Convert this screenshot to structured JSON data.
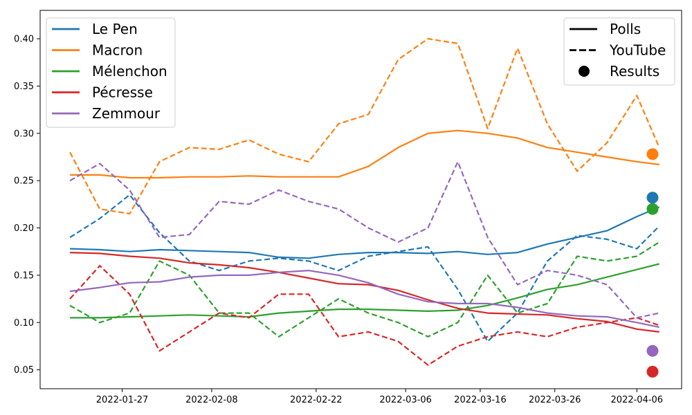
{
  "chart_data": {
    "type": "line",
    "title": "",
    "xlabel": "",
    "ylabel": "",
    "xlim": [
      "2022-01-16",
      "2022-04-12"
    ],
    "ylim": [
      0.03,
      0.43
    ],
    "x_ticks": [
      "2022-01-27",
      "2022-02-08",
      "2022-02-22",
      "2022-03-06",
      "2022-03-16",
      "2022-03-26",
      "2022-04-06"
    ],
    "y_ticks": [
      0.05,
      0.1,
      0.15,
      0.2,
      0.25,
      0.3,
      0.35,
      0.4
    ],
    "grid": false,
    "legend_candidates_position": "top-left",
    "legend_style_position": "top-right",
    "style_legend": [
      {
        "label": "Polls",
        "style": "solid-line"
      },
      {
        "label": "YouTube",
        "style": "dashed-line"
      },
      {
        "label": "Results",
        "style": "dot"
      }
    ],
    "x": [
      "2022-01-20",
      "2022-01-24",
      "2022-01-28",
      "2022-02-01",
      "2022-02-05",
      "2022-02-09",
      "2022-02-13",
      "2022-02-17",
      "2022-02-21",
      "2022-02-25",
      "2022-03-01",
      "2022-03-05",
      "2022-03-09",
      "2022-03-13",
      "2022-03-17",
      "2022-03-21",
      "2022-03-25",
      "2022-03-29",
      "2022-04-02",
      "2022-04-06",
      "2022-04-09"
    ],
    "series": [
      {
        "name": "Le Pen",
        "color": "#1f77b4",
        "polls": [
          0.178,
          0.177,
          0.175,
          0.177,
          0.176,
          0.175,
          0.174,
          0.169,
          0.168,
          0.172,
          0.174,
          0.174,
          0.173,
          0.175,
          0.172,
          0.174,
          0.183,
          0.19,
          0.197,
          0.212,
          0.222
        ],
        "youtube": [
          0.19,
          0.21,
          0.235,
          0.195,
          0.165,
          0.155,
          0.165,
          0.168,
          0.165,
          0.155,
          0.17,
          0.175,
          0.18,
          0.135,
          0.08,
          0.11,
          0.165,
          0.192,
          0.188,
          0.178,
          0.202
        ],
        "result": 0.232
      },
      {
        "name": "Macron",
        "color": "#ff7f0e",
        "polls": [
          0.256,
          0.256,
          0.253,
          0.253,
          0.254,
          0.254,
          0.255,
          0.254,
          0.254,
          0.254,
          0.265,
          0.285,
          0.3,
          0.303,
          0.3,
          0.295,
          0.285,
          0.28,
          0.275,
          0.27,
          0.267
        ],
        "youtube": [
          0.28,
          0.22,
          0.215,
          0.27,
          0.285,
          0.283,
          0.293,
          0.278,
          0.27,
          0.31,
          0.32,
          0.378,
          0.4,
          0.395,
          0.305,
          0.39,
          0.31,
          0.26,
          0.29,
          0.34,
          0.285
        ],
        "result": 0.278
      },
      {
        "name": "Mélenchon",
        "color": "#2ca02c",
        "polls": [
          0.105,
          0.105,
          0.106,
          0.107,
          0.108,
          0.107,
          0.106,
          0.11,
          0.112,
          0.114,
          0.114,
          0.113,
          0.112,
          0.113,
          0.118,
          0.126,
          0.135,
          0.14,
          0.148,
          0.156,
          0.162
        ],
        "youtube": [
          0.118,
          0.1,
          0.11,
          0.165,
          0.15,
          0.11,
          0.11,
          0.085,
          0.105,
          0.125,
          0.11,
          0.1,
          0.085,
          0.1,
          0.15,
          0.11,
          0.12,
          0.17,
          0.165,
          0.17,
          0.185
        ],
        "result": 0.22
      },
      {
        "name": "Pécresse",
        "color": "#d62728",
        "polls": [
          0.174,
          0.173,
          0.17,
          0.168,
          0.163,
          0.161,
          0.158,
          0.153,
          0.147,
          0.141,
          0.14,
          0.134,
          0.124,
          0.115,
          0.11,
          0.109,
          0.108,
          0.104,
          0.101,
          0.093,
          0.09
        ],
        "youtube": [
          0.125,
          0.16,
          0.13,
          0.07,
          0.09,
          0.11,
          0.105,
          0.13,
          0.13,
          0.085,
          0.09,
          0.08,
          0.055,
          0.075,
          0.085,
          0.09,
          0.085,
          0.095,
          0.1,
          0.105,
          0.097
        ],
        "result": 0.048
      },
      {
        "name": "Zemmour",
        "color": "#9467bd",
        "polls": [
          0.133,
          0.137,
          0.142,
          0.143,
          0.148,
          0.15,
          0.15,
          0.153,
          0.155,
          0.15,
          0.142,
          0.13,
          0.122,
          0.12,
          0.12,
          0.116,
          0.11,
          0.107,
          0.106,
          0.1,
          0.095
        ],
        "youtube": [
          0.25,
          0.268,
          0.24,
          0.19,
          0.193,
          0.228,
          0.225,
          0.24,
          0.228,
          0.22,
          0.2,
          0.185,
          0.2,
          0.27,
          0.19,
          0.14,
          0.155,
          0.15,
          0.14,
          0.105,
          0.11
        ],
        "result": 0.07
      }
    ]
  }
}
